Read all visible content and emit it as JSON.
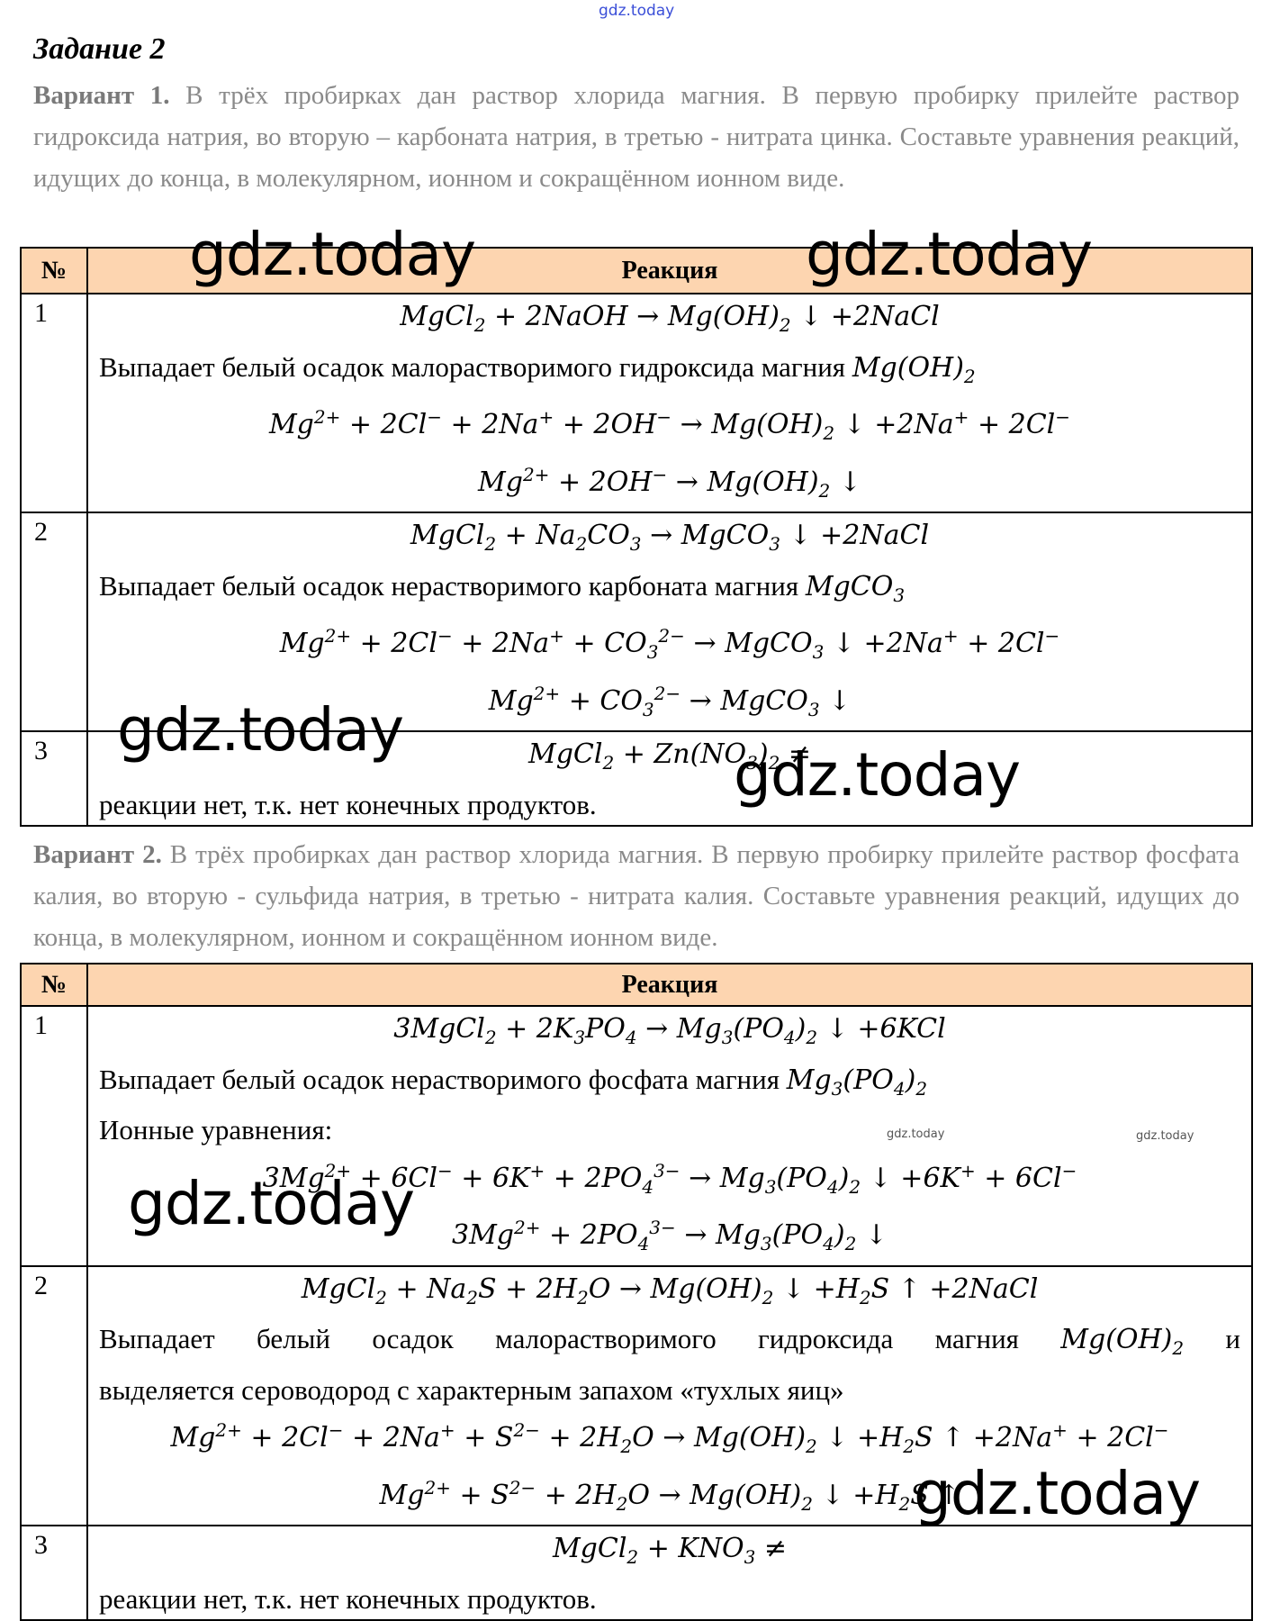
{
  "header_watermark": "gdz.today",
  "title": "Задание 2",
  "variant1": {
    "label": "Вариант 1.",
    "text": " В трёх пробирках дан раствор хлорида магния. В первую пробирку прилейте раствор гидроксида натрия, во вторую – карбоната натрия, в третью - нитрата цинка. Составьте уравнения реакций, идущих до конца, в молекулярном, ионном и сокращённом ионном виде."
  },
  "variant2": {
    "label": "Вариант 2.",
    "text": " В трёх пробирках дан раствор хлорида магния. В первую пробирку прилейте раствор фосфата калия, во вторую - сульфида натрия, в третью - нитрата калия. Составьте уравнения реакций, идущих до конца, в молекулярном, ионном и сокращённом ионном виде."
  },
  "table_headers": {
    "num": "№",
    "reaction": "Реакция"
  },
  "t1": {
    "r1": {
      "num": "1",
      "desc": "Выпадает белый осадок малорастворимого гидроксида магния"
    },
    "r2": {
      "num": "2",
      "desc": "Выпадает белый осадок нерастворимого карбоната магния"
    },
    "r3": {
      "num": "3",
      "desc": "реакции нет, т.к. нет конечных продуктов."
    }
  },
  "t2": {
    "r1": {
      "num": "1",
      "desc": "Выпадает белый осадок нерастворимого фосфата магния",
      "ionic_label": "Ионные уравнения:"
    },
    "r2": {
      "num": "2",
      "desc": "Выпадает белый осадок малорастворимого гидроксида магния",
      "desc_and": "и",
      "desc2": "выделяется сероводород с характерным запахом «тухлых яиц»"
    },
    "r3": {
      "num": "3",
      "desc": "реакции нет, т.к. нет конечных продуктов."
    }
  },
  "watermark": "gdz.today",
  "colors": {
    "header_bg": "#fdd5b0",
    "task_text": "#8a8a8a",
    "top_watermark": "#3b4fd8"
  }
}
